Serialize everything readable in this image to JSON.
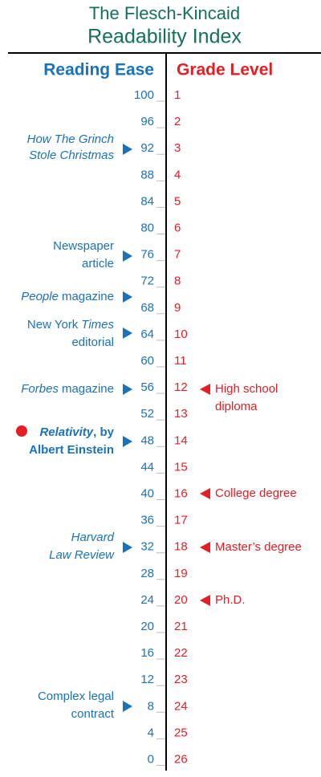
{
  "title": [
    "The Flesch-Kincaid",
    "Readability Index"
  ],
  "headers": {
    "reading_ease": "Reading Ease",
    "grade_level": "Grade Level"
  },
  "scale": {
    "reading_ease": [
      100,
      96,
      92,
      88,
      84,
      80,
      76,
      72,
      68,
      64,
      60,
      56,
      52,
      48,
      44,
      40,
      36,
      32,
      28,
      24,
      20,
      16,
      12,
      8,
      4,
      0
    ],
    "grade_level": [
      1,
      2,
      3,
      4,
      5,
      6,
      7,
      8,
      9,
      10,
      11,
      12,
      13,
      14,
      15,
      16,
      17,
      18,
      19,
      20,
      21,
      22,
      23,
      24,
      25,
      26
    ]
  },
  "left_notes": {
    "grinch": [
      "How The Grinch",
      "Stole Christmas"
    ],
    "newspaper": [
      "Newspaper",
      "article"
    ],
    "people": [
      "People",
      "magazine"
    ],
    "nyt": [
      "New York",
      "Times",
      "editorial"
    ],
    "forbes": [
      "Forbes",
      "magazine"
    ],
    "relativity": [
      "Relativity",
      ", by",
      "Albert Einstein"
    ],
    "harvard": [
      "Harvard",
      "Law Review"
    ],
    "legal": [
      "Complex legal",
      "contract"
    ]
  },
  "right_notes": {
    "high_school": [
      "High school",
      "diploma"
    ],
    "college": "College degree",
    "masters": "Master’s degree",
    "phd": "Ph.D."
  }
}
